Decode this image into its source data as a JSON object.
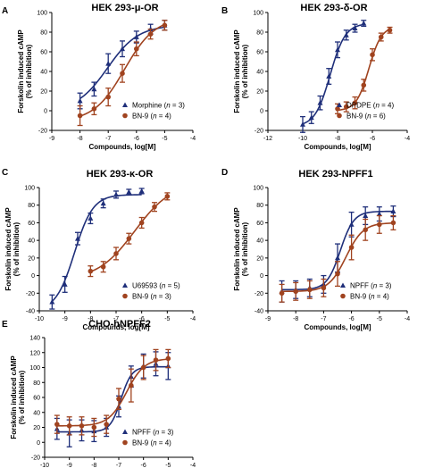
{
  "colors": {
    "series_a": "#1f2f7a",
    "series_b": "#a0431f",
    "axis": "#000000"
  },
  "chart_data": [
    {
      "type": "scatter",
      "letter": "A",
      "title": "HEK 293-μ-OR",
      "xlabel": "Compounds, log[M]",
      "ylabel_line1": "Forskolin induced cAMP",
      "ylabel_line2": "(% of inhibition)",
      "xlim": [
        -9,
        -4
      ],
      "ylim": [
        -20,
        100
      ],
      "xticks": [
        -9,
        -8,
        -7,
        -6,
        -5,
        -4
      ],
      "yticks": [
        -20,
        0,
        20,
        40,
        60,
        80,
        100
      ],
      "legend_position": "bottom-right",
      "grid": false,
      "series": [
        {
          "name": "Morphine",
          "n_label": "3",
          "marker": "triangle",
          "color": "#1f2f7a",
          "x": [
            -8,
            -7.5,
            -7,
            -6.5,
            -6,
            -5.5,
            -5
          ],
          "y": [
            10,
            22,
            48,
            63,
            75,
            83,
            87
          ],
          "err": [
            8,
            7,
            10,
            8,
            6,
            5,
            5
          ]
        },
        {
          "name": "BN-9",
          "n_label": "4",
          "marker": "circle",
          "color": "#a0431f",
          "x": [
            -8,
            -7.5,
            -7,
            -6.5,
            -6,
            -5.5,
            -5
          ],
          "y": [
            -5,
            2,
            14,
            38,
            63,
            78,
            87
          ],
          "err": [
            10,
            6,
            9,
            9,
            7,
            5,
            5
          ]
        }
      ]
    },
    {
      "type": "scatter",
      "letter": "B",
      "title": "HEK 293-δ-OR",
      "xlabel": "Compounds, log[M]",
      "ylabel_line1": "Forskolin induced cAMP",
      "ylabel_line2": "(% of inhibition)",
      "xlim": [
        -12,
        -4
      ],
      "ylim": [
        -20,
        100
      ],
      "xticks": [
        -12,
        -10,
        -8,
        -6,
        -4
      ],
      "yticks": [
        -20,
        0,
        20,
        40,
        60,
        80,
        100
      ],
      "legend_position": "bottom-right",
      "grid": false,
      "series": [
        {
          "name": "DPDPE",
          "n_label": "4",
          "marker": "triangle",
          "color": "#1f2f7a",
          "x": [
            -10,
            -9.5,
            -9,
            -8.5,
            -8,
            -7.5,
            -7,
            -6.5
          ],
          "y": [
            -14,
            -7,
            8,
            35,
            62,
            77,
            84,
            89
          ],
          "err": [
            8,
            6,
            7,
            8,
            8,
            5,
            4,
            3
          ]
        },
        {
          "name": "BN-9",
          "n_label": "6",
          "marker": "circle",
          "color": "#a0431f",
          "x": [
            -8,
            -7.5,
            -7,
            -6.5,
            -6,
            -5.5,
            -5
          ],
          "y": [
            2,
            4,
            8,
            26,
            57,
            75,
            82
          ],
          "err": [
            5,
            5,
            6,
            6,
            6,
            4,
            3
          ]
        }
      ]
    },
    {
      "type": "scatter",
      "letter": "C",
      "title": "HEK 293-κ-OR",
      "xlabel": "Compounds, log[M]",
      "ylabel_line1": "Forskolin induced cAMP",
      "ylabel_line2": "(% of inhibition)",
      "xlim": [
        -10,
        -4
      ],
      "ylim": [
        -40,
        100
      ],
      "xticks": [
        -10,
        -9,
        -8,
        -7,
        -6,
        -5,
        -4
      ],
      "yticks": [
        -40,
        -20,
        0,
        20,
        40,
        60,
        80,
        100
      ],
      "legend_position": "bottom-right",
      "grid": false,
      "series": [
        {
          "name": "U69593",
          "n_label": "5",
          "marker": "triangle",
          "color": "#1f2f7a",
          "x": [
            -9.5,
            -9,
            -8.5,
            -8,
            -7.5,
            -7,
            -6.5,
            -6
          ],
          "y": [
            -30,
            -10,
            42,
            65,
            82,
            92,
            95,
            96
          ],
          "err": [
            8,
            9,
            7,
            6,
            5,
            4,
            3,
            3
          ]
        },
        {
          "name": "BN-9",
          "n_label": "3",
          "marker": "circle",
          "color": "#a0431f",
          "x": [
            -8,
            -7.5,
            -7,
            -6.5,
            -6,
            -5.5,
            -5
          ],
          "y": [
            5,
            10,
            25,
            42,
            60,
            78,
            90
          ],
          "err": [
            6,
            6,
            7,
            6,
            6,
            5,
            4
          ]
        }
      ]
    },
    {
      "type": "scatter",
      "letter": "D",
      "title": "HEK 293-NPFF1",
      "xlabel": "Compounds, log[M]",
      "ylabel_line1": "Forskolin induced cAMP",
      "ylabel_line2": "(% of inhibition)",
      "xlim": [
        -9,
        -4
      ],
      "ylim": [
        -40,
        100
      ],
      "xticks": [
        -9,
        -8,
        -7,
        -6,
        -5,
        -4
      ],
      "yticks": [
        -40,
        -20,
        0,
        20,
        40,
        60,
        80,
        100
      ],
      "legend_position": "bottom-right",
      "grid": false,
      "series": [
        {
          "name": "NPFF",
          "n_label": "3",
          "marker": "triangle",
          "color": "#1f2f7a",
          "x": [
            -8.5,
            -8,
            -7.5,
            -7,
            -6.5,
            -6,
            -5.5,
            -5,
            -4.5
          ],
          "y": [
            -18,
            -16,
            -14,
            -10,
            20,
            58,
            68,
            70,
            73
          ],
          "err": [
            12,
            10,
            10,
            10,
            16,
            14,
            10,
            8,
            6
          ]
        },
        {
          "name": "BN-9",
          "n_label": "4",
          "marker": "circle",
          "color": "#a0431f",
          "x": [
            -8.5,
            -8,
            -7.5,
            -7,
            -6.5,
            -6,
            -5.5,
            -5,
            -4.5
          ],
          "y": [
            -20,
            -18,
            -16,
            -14,
            2,
            32,
            52,
            58,
            60
          ],
          "err": [
            10,
            10,
            10,
            10,
            14,
            14,
            12,
            10,
            8
          ]
        }
      ]
    },
    {
      "type": "scatter",
      "letter": "E",
      "title": "CHO-hNPFF2",
      "xlabel": "Compounds, log[M]",
      "ylabel_line1": "Forskolin induced cAMP",
      "ylabel_line2": "(% of inhibition)",
      "xlim": [
        -10,
        -4
      ],
      "ylim": [
        -20,
        140
      ],
      "xticks": [
        -10,
        -9,
        -8,
        -7,
        -6,
        -5,
        -4
      ],
      "yticks": [
        -20,
        0,
        20,
        40,
        60,
        80,
        100,
        120,
        140
      ],
      "legend_position": "bottom-right",
      "grid": false,
      "series": [
        {
          "name": "NPFF",
          "n_label": "3",
          "marker": "triangle",
          "color": "#1f2f7a",
          "x": [
            -9.5,
            -9,
            -8.5,
            -8,
            -7.5,
            -7,
            -6.5,
            -6,
            -5.5,
            -5
          ],
          "y": [
            18,
            12,
            16,
            15,
            20,
            48,
            88,
            102,
            105,
            102
          ],
          "err": [
            14,
            18,
            14,
            14,
            12,
            14,
            14,
            16,
            16,
            18
          ]
        },
        {
          "name": "BN-9",
          "n_label": "4",
          "marker": "circle",
          "color": "#a0431f",
          "x": [
            -9.5,
            -9,
            -8.5,
            -8,
            -7.5,
            -7,
            -6.5,
            -6,
            -5.5,
            -5
          ],
          "y": [
            24,
            22,
            22,
            20,
            24,
            58,
            76,
            100,
            110,
            112
          ],
          "err": [
            12,
            12,
            12,
            12,
            12,
            14,
            22,
            16,
            14,
            12
          ]
        }
      ]
    }
  ]
}
